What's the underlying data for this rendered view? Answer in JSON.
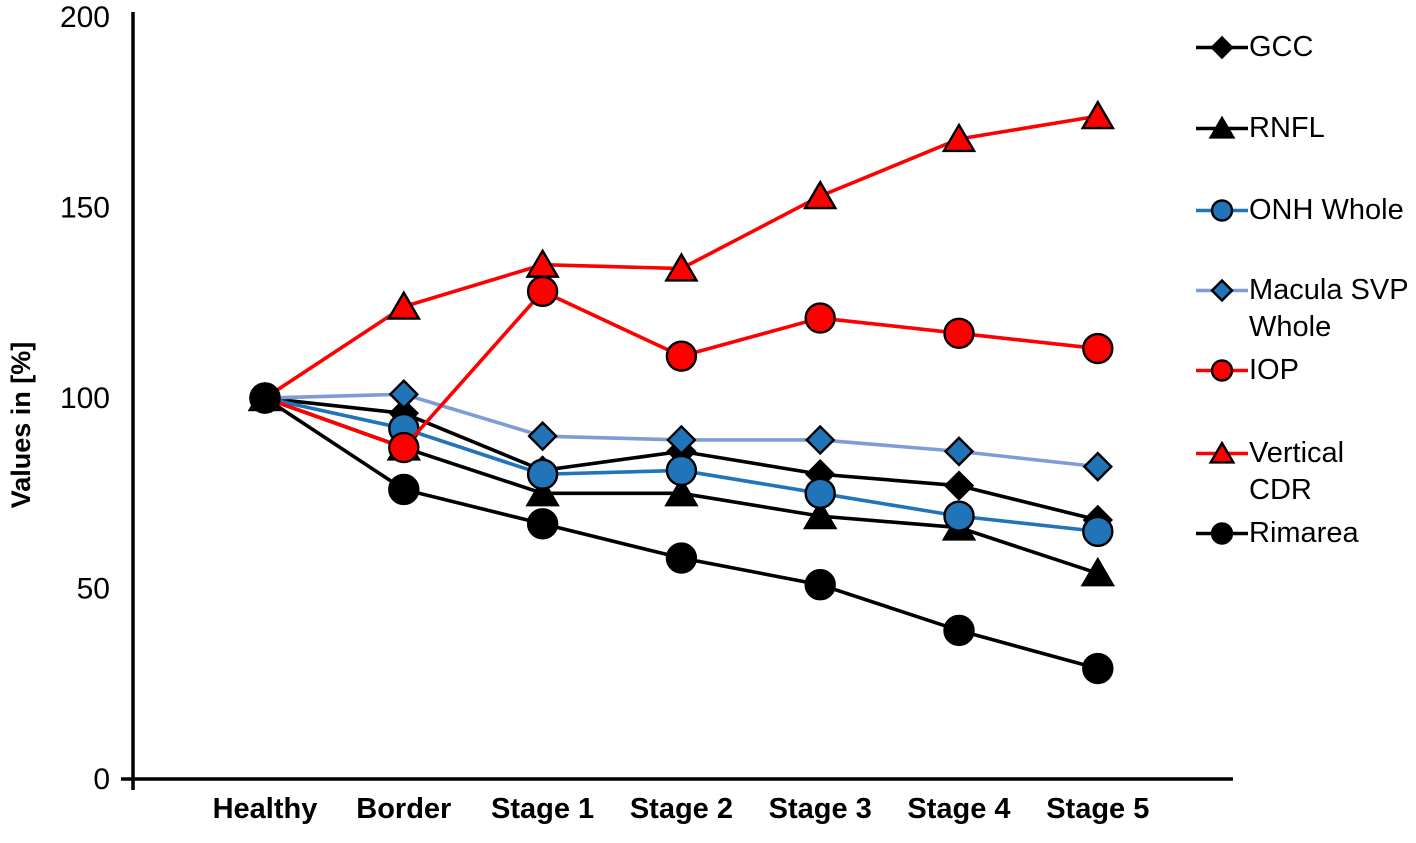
{
  "page": {
    "background": "#ffffff"
  },
  "chart_data": {
    "type": "line",
    "title": "",
    "xlabel": "",
    "ylabel": "Values in [%]",
    "ylim": [
      0,
      200
    ],
    "yticks": [
      0,
      50,
      100,
      150,
      200
    ],
    "grid": false,
    "legend_position": "right",
    "categories": [
      "Healthy",
      "Border",
      "Stage 1",
      "Stage 2",
      "Stage 3",
      "Stage 4",
      "Stage 5"
    ],
    "marker_outline_color": "#000000",
    "series": [
      {
        "name": "GCC",
        "marker": "diamond",
        "line_color": "#000000",
        "fill_color": "#000000",
        "values": [
          100,
          96,
          81,
          86,
          80,
          77,
          68
        ]
      },
      {
        "name": "RNFL",
        "marker": "triangle",
        "line_color": "#000000",
        "fill_color": "#000000",
        "values": [
          100,
          87,
          75,
          75,
          69,
          66,
          54
        ]
      },
      {
        "name": "ONH Whole",
        "marker": "circle",
        "line_color": "#2074B7",
        "fill_color": "#2074B7",
        "values": [
          100,
          92,
          80,
          81,
          75,
          69,
          65
        ]
      },
      {
        "name": "Macula SVP Whole",
        "marker": "diamond",
        "line_color": "#7E9CD6",
        "fill_color": "#2074B7",
        "values": [
          100,
          101,
          90,
          89,
          89,
          86,
          82
        ]
      },
      {
        "name": "IOP",
        "marker": "circle",
        "line_color": "#FE0000",
        "fill_color": "#FE0000",
        "values": [
          100,
          87,
          128,
          111,
          121,
          117,
          113
        ]
      },
      {
        "name": "Vertical CDR",
        "marker": "triangle",
        "line_color": "#FE0000",
        "fill_color": "#FE0000",
        "values": [
          100,
          124,
          135,
          134,
          153,
          168,
          174
        ]
      },
      {
        "name": "Rimarea",
        "marker": "circle",
        "line_color": "#000000",
        "fill_color": "#000000",
        "values": [
          100,
          76,
          67,
          58,
          51,
          39,
          29
        ]
      }
    ]
  }
}
